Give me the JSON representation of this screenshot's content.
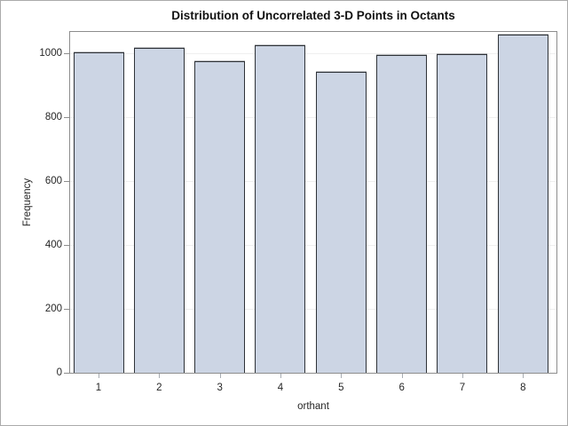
{
  "chart_data": {
    "type": "bar",
    "title": "Distribution of Uncorrelated 3-D Points in Octants",
    "xlabel": "orthant",
    "ylabel": "Frequency",
    "categories": [
      "1",
      "2",
      "3",
      "4",
      "5",
      "6",
      "7",
      "8"
    ],
    "values": [
      1002,
      1018,
      976,
      1025,
      941,
      995,
      996,
      1057
    ],
    "yticks": [
      0,
      200,
      400,
      600,
      800,
      1000
    ],
    "ylim": [
      0,
      1067
    ],
    "grid": true,
    "legend": false,
    "bar_fill": "#ccd5e4",
    "bar_outline": "#2e3237",
    "frame_color": "#8d8d8d",
    "gridline_color": "#efefef"
  }
}
